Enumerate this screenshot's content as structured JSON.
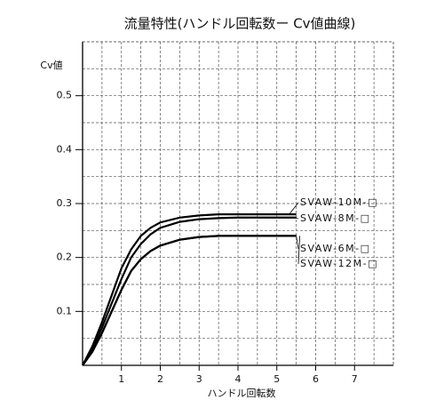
{
  "chart_data": {
    "type": "line",
    "title": "流量特性(ハンドル回転数ー Cv値曲線)",
    "x_label": "ハンドル回転数",
    "y_label": "Cv値",
    "x": [
      0,
      0.25,
      0.5,
      0.75,
      1,
      1.25,
      1.5,
      1.75,
      2,
      2.5,
      3,
      3.5,
      4,
      4.5,
      5,
      5.5
    ],
    "series": [
      {
        "name": "SVAW-10M-□",
        "color": "#000000",
        "values": [
          0,
          0.035,
          0.08,
          0.13,
          0.18,
          0.215,
          0.24,
          0.255,
          0.265,
          0.274,
          0.278,
          0.28,
          0.28,
          0.28,
          0.28,
          0.28
        ]
      },
      {
        "name": "SVAW-8M-□",
        "color": "#000000",
        "values": [
          0,
          0.03,
          0.07,
          0.115,
          0.16,
          0.2,
          0.225,
          0.243,
          0.255,
          0.266,
          0.271,
          0.273,
          0.274,
          0.274,
          0.274,
          0.274
        ]
      },
      {
        "name": "SVAW-6M-□",
        "color": "#000000",
        "values": [
          0,
          0.025,
          0.06,
          0.1,
          0.14,
          0.175,
          0.197,
          0.212,
          0.222,
          0.233,
          0.238,
          0.24,
          0.24,
          0.24,
          0.24,
          0.24
        ]
      },
      {
        "name": "SVAW-12M-□",
        "color": "#000000",
        "values": [
          0,
          0.025,
          0.06,
          0.1,
          0.14,
          0.175,
          0.197,
          0.212,
          0.222,
          0.233,
          0.238,
          0.24,
          0.24,
          0.24,
          0.24,
          0.24
        ]
      }
    ],
    "xlim": [
      0,
      8
    ],
    "xticks": [
      1,
      2,
      3,
      4,
      5,
      6,
      7
    ],
    "ylim": [
      0,
      0.6
    ],
    "yticks": [
      0.1,
      0.2,
      0.3,
      0.4,
      0.5
    ],
    "grid": true
  }
}
